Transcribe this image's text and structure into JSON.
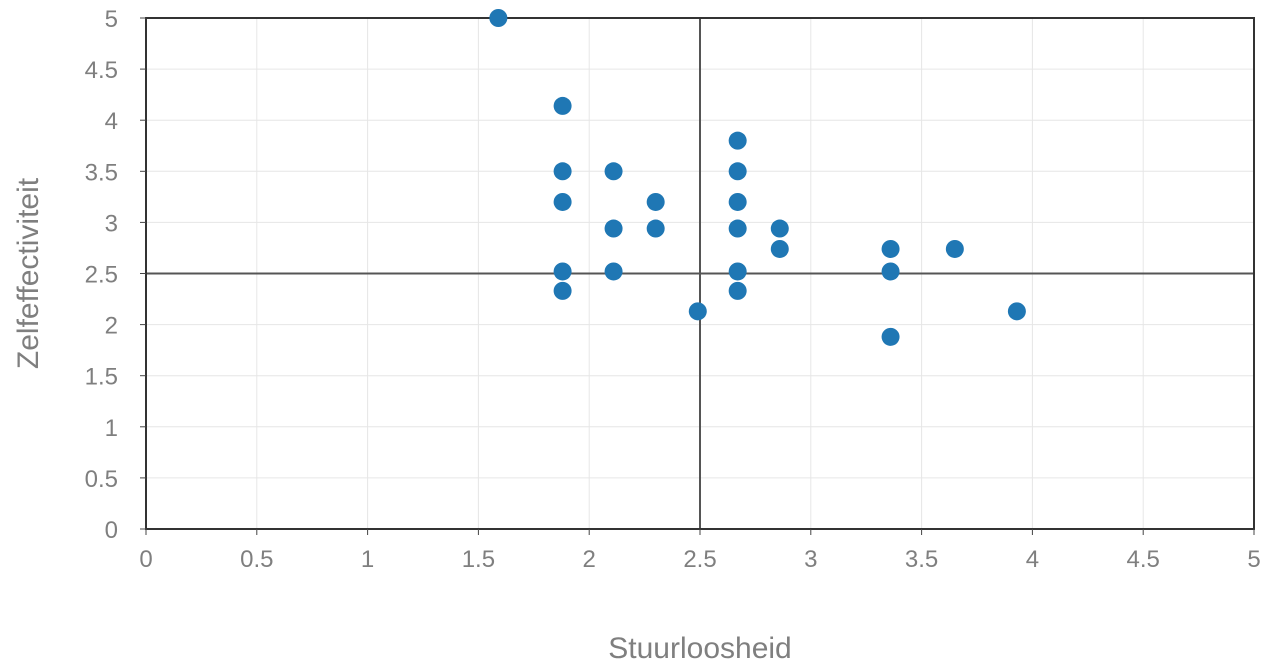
{
  "chart_data": {
    "type": "scatter",
    "title": "",
    "xlabel": "Stuurloosheid",
    "ylabel": "Zelfeffectiviteit",
    "xlim": [
      0,
      5
    ],
    "ylim": [
      0,
      5
    ],
    "xticks": [
      "0",
      "0.5",
      "1",
      "1.5",
      "2",
      "2.5",
      "3",
      "3.5",
      "4",
      "4.5",
      "5"
    ],
    "yticks": [
      "0",
      "0.5",
      "1",
      "1.5",
      "2",
      "2.5",
      "3",
      "3.5",
      "4",
      "4.5",
      "5"
    ],
    "grid": true,
    "reference_lines": {
      "x": 2.5,
      "y": 2.5
    },
    "marker_color": "#1f77b4",
    "points": [
      {
        "x": 1.59,
        "y": 5.0
      },
      {
        "x": 1.88,
        "y": 4.14
      },
      {
        "x": 1.88,
        "y": 3.5
      },
      {
        "x": 1.88,
        "y": 3.2
      },
      {
        "x": 1.88,
        "y": 2.52
      },
      {
        "x": 1.88,
        "y": 2.33
      },
      {
        "x": 2.11,
        "y": 3.5
      },
      {
        "x": 2.11,
        "y": 2.94
      },
      {
        "x": 2.11,
        "y": 2.52
      },
      {
        "x": 2.3,
        "y": 3.2
      },
      {
        "x": 2.3,
        "y": 2.94
      },
      {
        "x": 2.49,
        "y": 2.13
      },
      {
        "x": 2.67,
        "y": 3.8
      },
      {
        "x": 2.67,
        "y": 3.5
      },
      {
        "x": 2.67,
        "y": 3.2
      },
      {
        "x": 2.67,
        "y": 2.94
      },
      {
        "x": 2.67,
        "y": 2.52
      },
      {
        "x": 2.67,
        "y": 2.33
      },
      {
        "x": 2.86,
        "y": 2.94
      },
      {
        "x": 2.86,
        "y": 2.74
      },
      {
        "x": 3.36,
        "y": 2.74
      },
      {
        "x": 3.36,
        "y": 2.52
      },
      {
        "x": 3.36,
        "y": 1.88
      },
      {
        "x": 3.65,
        "y": 2.74
      },
      {
        "x": 3.93,
        "y": 2.13
      }
    ]
  }
}
